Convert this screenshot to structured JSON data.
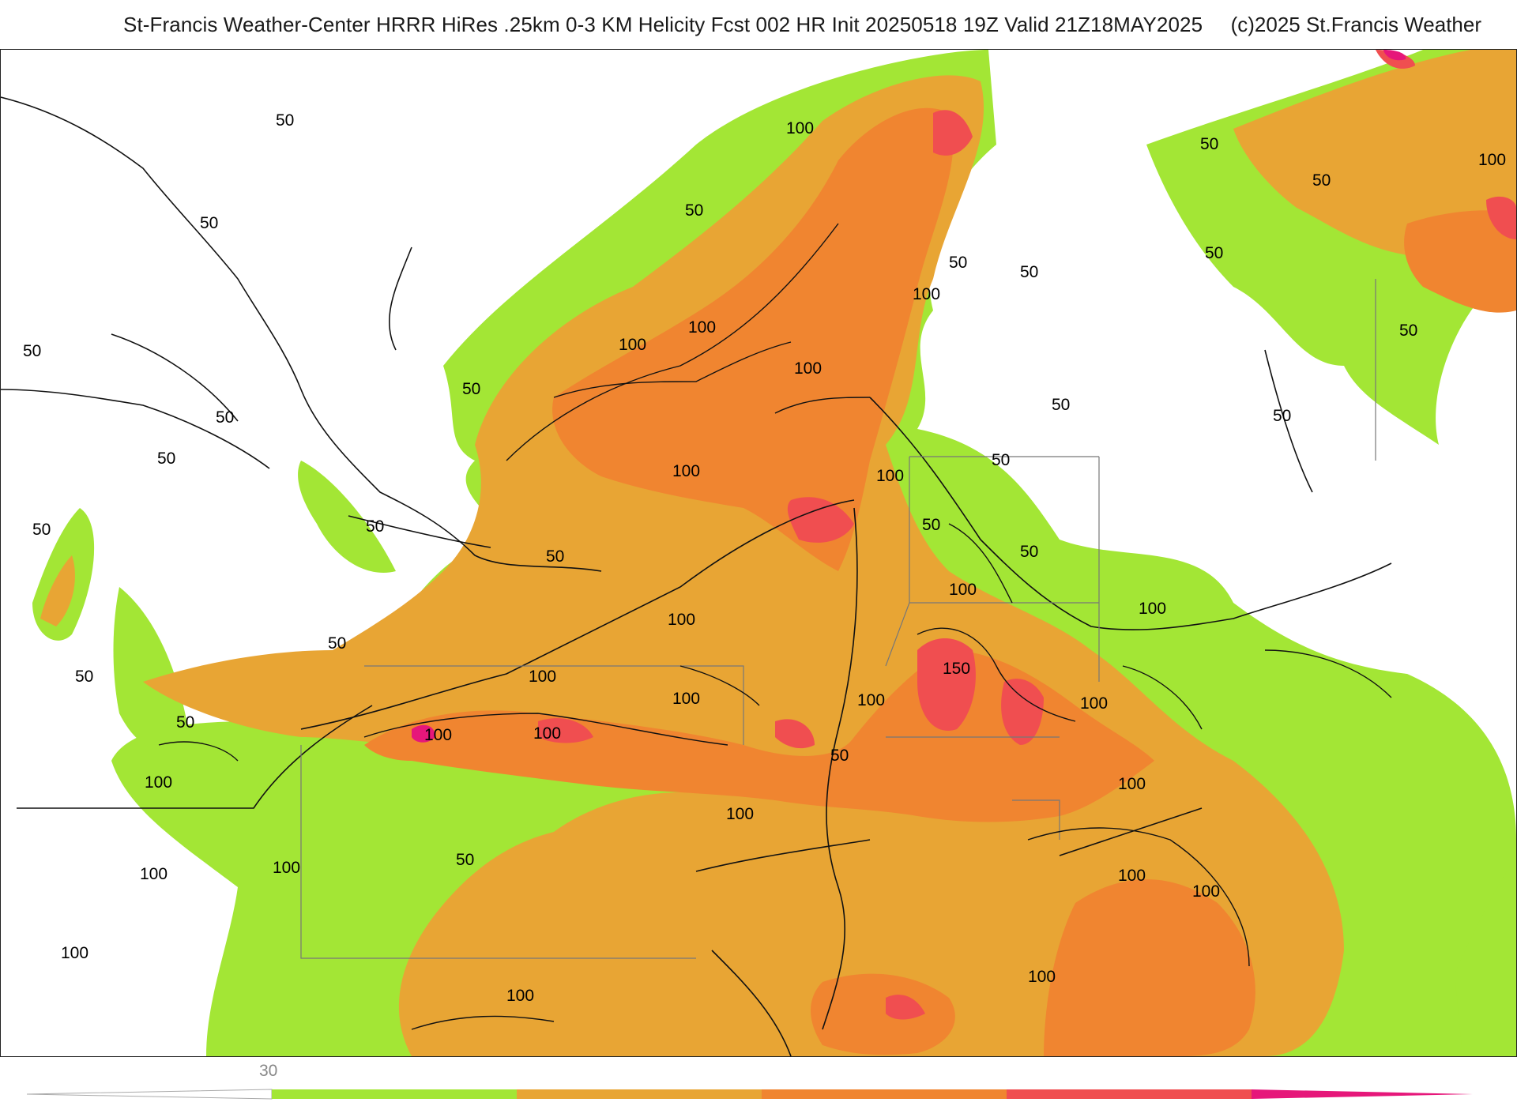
{
  "header": {
    "title": "St-Francis Weather-Center HRRR HiRes .25km 0-3 KM Helicity Fcst 002 HR Init 20250518 19Z  Valid 21Z18MAY2025",
    "credit": "(c)2025 St.Francis Weather"
  },
  "colors": {
    "level_1": "#a3e635",
    "level_2": "#e8a534",
    "level_3": "#f08530",
    "level_4": "#f04e50",
    "level_5": "#e6177a",
    "contour": "#111111",
    "border": "#777777"
  },
  "contour_labels": [
    {
      "text": "50"
    },
    {
      "text": "50"
    },
    {
      "text": "50"
    },
    {
      "text": "100"
    },
    {
      "text": "50"
    },
    {
      "text": "100"
    },
    {
      "text": "50"
    },
    {
      "text": "100"
    },
    {
      "text": "100"
    },
    {
      "text": "50"
    },
    {
      "text": "50"
    },
    {
      "text": "100"
    },
    {
      "text": "100"
    },
    {
      "text": "50"
    },
    {
      "text": "100"
    },
    {
      "text": "50"
    },
    {
      "text": "50"
    },
    {
      "text": "50"
    },
    {
      "text": "50"
    },
    {
      "text": "50"
    },
    {
      "text": "50"
    },
    {
      "text": "50"
    },
    {
      "text": "50"
    },
    {
      "text": "50"
    },
    {
      "text": "100"
    },
    {
      "text": "50"
    },
    {
      "text": "50"
    },
    {
      "text": "50"
    },
    {
      "text": "100"
    },
    {
      "text": "50"
    },
    {
      "text": "100"
    },
    {
      "text": "100"
    },
    {
      "text": "150"
    },
    {
      "text": "100"
    },
    {
      "text": "100"
    },
    {
      "text": "100"
    },
    {
      "text": "100"
    },
    {
      "text": "50"
    },
    {
      "text": "50"
    },
    {
      "text": "100"
    },
    {
      "text": "100"
    },
    {
      "text": "50"
    },
    {
      "text": "100"
    },
    {
      "text": "50"
    },
    {
      "text": "100"
    },
    {
      "text": "100"
    },
    {
      "text": "100"
    },
    {
      "text": "100"
    },
    {
      "text": "100"
    },
    {
      "text": "100"
    },
    {
      "text": "100"
    },
    {
      "text": "100"
    },
    {
      "text": "100"
    },
    {
      "text": "50"
    }
  ],
  "colorbar": {
    "tick_label": "30"
  }
}
